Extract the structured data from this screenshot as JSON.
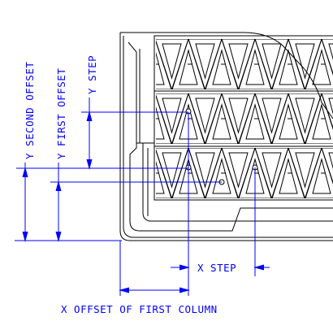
{
  "labels": {
    "y_second_offset": "Y SECOND OFFSET",
    "y_first_offset": "Y FIRST OFFSET",
    "y_step": "Y STEP",
    "x_step": "X STEP",
    "x_offset_first_column": "X OFFSET OF FIRST COLUMN"
  },
  "colors": {
    "dimension": "#0000ff",
    "part": "#000000"
  }
}
